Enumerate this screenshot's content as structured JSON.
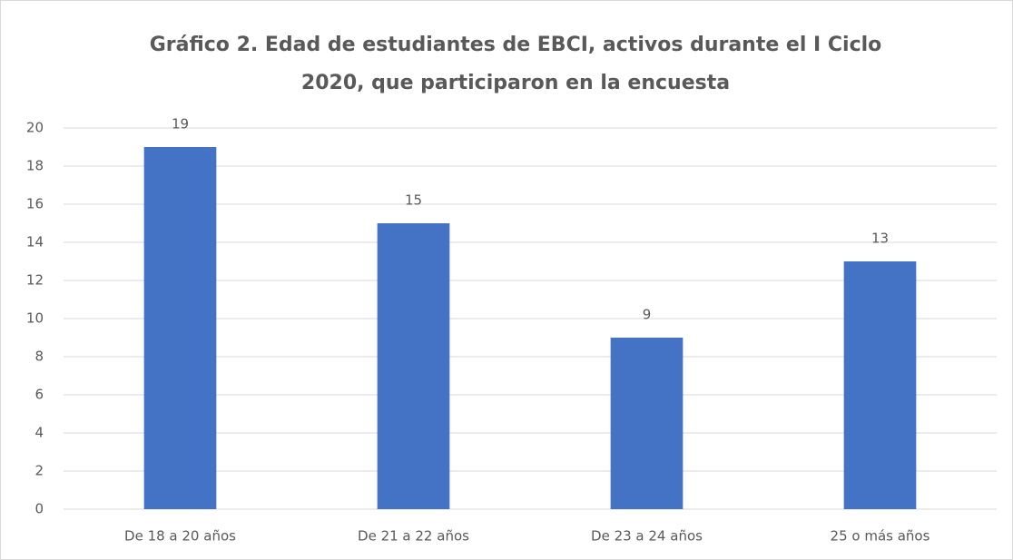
{
  "chart_data": {
    "type": "bar",
    "title": [
      "Gráfico 2. Edad de estudiantes de EBCI, activos durante el I Ciclo",
      "2020, que participaron en la encuesta"
    ],
    "categories": [
      "De 18 a 20 años",
      "De 21 a 22 años",
      "De 23 a 24 años",
      "25 o más años"
    ],
    "values": [
      19,
      15,
      9,
      13
    ],
    "color": "#4472c4",
    "ylim": [
      0,
      20
    ],
    "yticks": [
      0,
      2,
      4,
      6,
      8,
      10,
      12,
      14,
      16,
      18,
      20
    ],
    "grid": true
  }
}
